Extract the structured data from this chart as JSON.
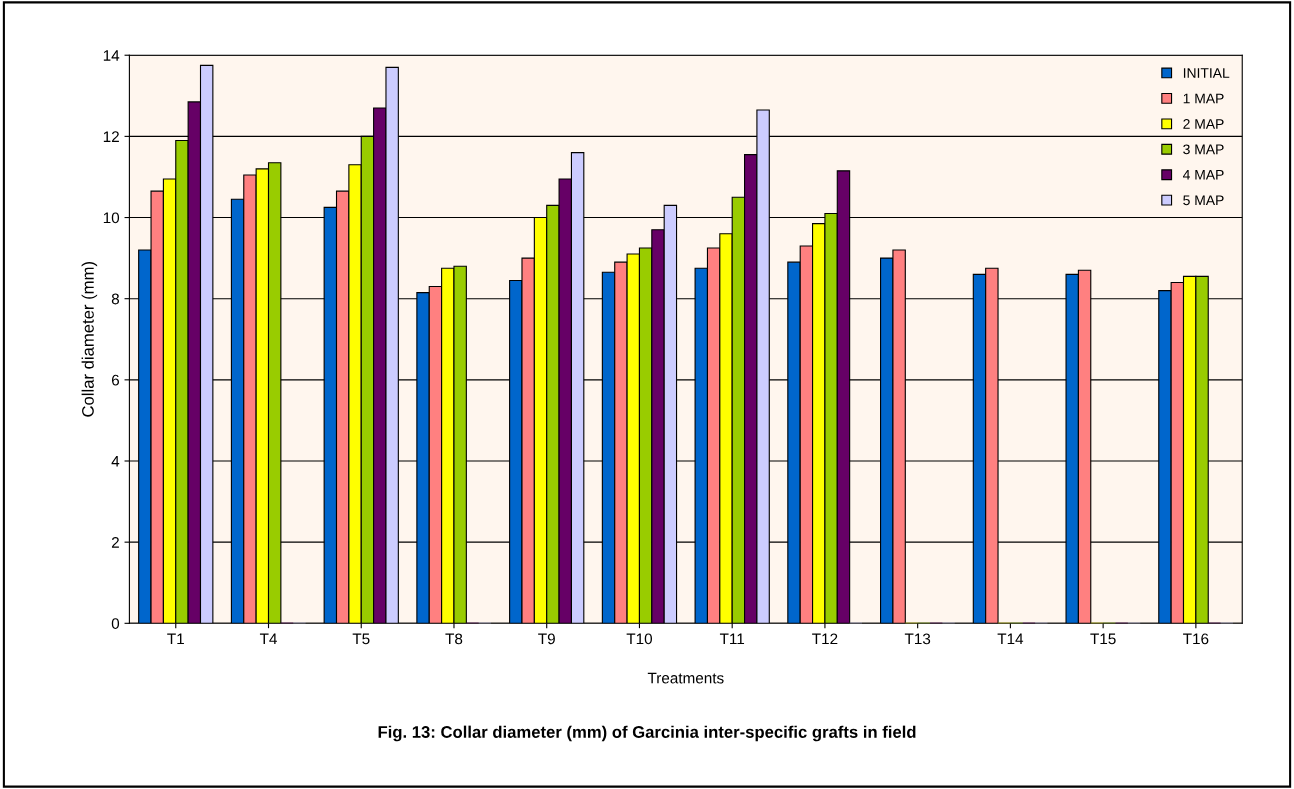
{
  "chart_data": {
    "type": "bar",
    "title": "Fig. 13: Collar diameter (mm) of Garcinia inter-specific grafts in field",
    "xlabel": "Treatments",
    "ylabel": "Collar diameter (mm)",
    "categories": [
      "T1",
      "T4",
      "T5",
      "T8",
      "T9",
      "T10",
      "T11",
      "T12",
      "T13",
      "T14",
      "T15",
      "T16"
    ],
    "series": [
      {
        "name": "INITIAL",
        "color": "#0066cc",
        "values": [
          9.2,
          10.45,
          10.25,
          8.15,
          8.45,
          8.65,
          8.75,
          8.9,
          9.0,
          8.6,
          8.6,
          8.2
        ]
      },
      {
        "name": "1 MAP",
        "color": "#ff8080",
        "values": [
          10.65,
          11.05,
          10.65,
          8.3,
          9.0,
          8.9,
          9.25,
          9.3,
          9.2,
          8.75,
          8.7,
          8.4
        ]
      },
      {
        "name": "2 MAP",
        "color": "#ffff00",
        "values": [
          10.95,
          11.2,
          11.3,
          8.75,
          10.0,
          9.1,
          9.6,
          9.85,
          0,
          0,
          0,
          8.55
        ]
      },
      {
        "name": "3 MAP",
        "color": "#99cc00",
        "values": [
          11.9,
          11.35,
          12.0,
          8.8,
          10.3,
          9.25,
          10.5,
          10.1,
          0,
          0,
          0,
          8.55
        ]
      },
      {
        "name": "4 MAP",
        "color": "#660066",
        "values": [
          12.85,
          0,
          12.7,
          0,
          10.95,
          9.7,
          11.55,
          11.15,
          0,
          0,
          0,
          0
        ]
      },
      {
        "name": "5 MAP",
        "color": "#ccccff",
        "values": [
          13.75,
          0,
          13.7,
          0,
          11.6,
          10.3,
          12.65,
          0,
          0,
          0,
          0,
          0
        ]
      }
    ],
    "ylim": [
      0,
      14
    ],
    "yticks": [
      0,
      2,
      4,
      6,
      8,
      10,
      12,
      14
    ],
    "grid": "y",
    "legend": "top right"
  }
}
